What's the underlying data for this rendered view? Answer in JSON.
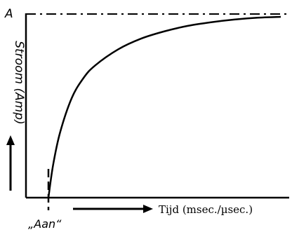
{
  "chart_data": {
    "type": "line",
    "title": "",
    "xlabel": "Tijd (msec./µsec.)",
    "ylabel": "Stroom (Amp)",
    "y_max_label": "A",
    "x_origin_label": "„Aan“",
    "xlim": [
      0,
      1
    ],
    "ylim": [
      0,
      1
    ],
    "grid": false,
    "legend": "none",
    "series": [
      {
        "x": [
          0,
          0.02,
          0.05,
          0.1,
          0.15,
          0.2,
          0.3,
          0.4,
          0.5,
          0.6,
          0.7,
          0.8,
          0.9,
          1.0
        ],
        "values": [
          0,
          0.18,
          0.36,
          0.55,
          0.66,
          0.73,
          0.82,
          0.88,
          0.92,
          0.95,
          0.97,
          0.985,
          0.995,
          1.0
        ]
      }
    ],
    "asymptote": 1.0
  }
}
